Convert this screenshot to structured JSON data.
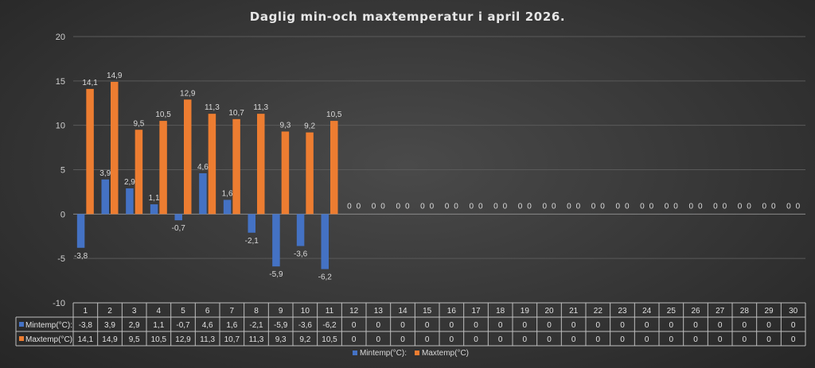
{
  "chart_data": {
    "type": "bar",
    "title": "Daglig min-och maxtemperatur i april 2026.",
    "categories": [
      "1",
      "2",
      "3",
      "4",
      "5",
      "6",
      "7",
      "8",
      "9",
      "10",
      "11",
      "12",
      "13",
      "14",
      "15",
      "16",
      "17",
      "18",
      "19",
      "20",
      "21",
      "22",
      "23",
      "24",
      "25",
      "26",
      "27",
      "28",
      "29",
      "30"
    ],
    "series": [
      {
        "name": "Mintemp(°C):",
        "color": "#4472c4",
        "values": [
          -3.8,
          3.9,
          2.9,
          1.1,
          -0.7,
          4.6,
          1.6,
          -2.1,
          -5.9,
          -3.6,
          -6.2,
          0,
          0,
          0,
          0,
          0,
          0,
          0,
          0,
          0,
          0,
          0,
          0,
          0,
          0,
          0,
          0,
          0,
          0,
          0
        ],
        "labels": [
          "-3,8",
          "3,9",
          "2,9",
          "1,1",
          "-0,7",
          "4,6",
          "1,6",
          "-2,1",
          "-5,9",
          "-3,6",
          "-6,2",
          "0",
          "0",
          "0",
          "0",
          "0",
          "0",
          "0",
          "0",
          "0",
          "0",
          "0",
          "0",
          "0",
          "0",
          "0",
          "0",
          "0",
          "0",
          "0"
        ]
      },
      {
        "name": "Maxtemp(°C)",
        "color": "#ed7d31",
        "values": [
          14.1,
          14.9,
          9.5,
          10.5,
          12.9,
          11.3,
          10.7,
          11.3,
          9.3,
          9.2,
          10.5,
          0,
          0,
          0,
          0,
          0,
          0,
          0,
          0,
          0,
          0,
          0,
          0,
          0,
          0,
          0,
          0,
          0,
          0,
          0
        ],
        "labels": [
          "14,1",
          "14,9",
          "9,5",
          "10,5",
          "12,9",
          "11,3",
          "10,7",
          "11,3",
          "9,3",
          "9,2",
          "10,5",
          "0",
          "0",
          "0",
          "0",
          "0",
          "0",
          "0",
          "0",
          "0",
          "0",
          "0",
          "0",
          "0",
          "0",
          "0",
          "0",
          "0",
          "0",
          "0"
        ]
      }
    ],
    "ylim": [
      -10,
      20
    ],
    "yticks": [
      "20",
      "15",
      "10",
      "5",
      "0",
      "-5",
      "-10"
    ],
    "ytick_values": [
      20,
      15,
      10,
      5,
      0,
      -5,
      -10
    ],
    "grid": true,
    "data_table": true,
    "legend_position": "bottom"
  }
}
